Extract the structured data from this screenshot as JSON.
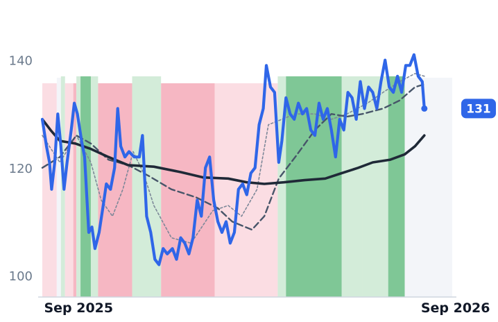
{
  "chart_data": {
    "type": "line",
    "y_ticks": [
      100,
      120,
      140
    ],
    "ylim": [
      96,
      146
    ],
    "x_range": [
      "2025-08-29",
      "2026-09-30"
    ],
    "x_ticks": [
      {
        "date": "2025-09-01",
        "label": "Sep 2025"
      },
      {
        "date": "2026-09-01",
        "label": "Sep 2026"
      }
    ],
    "last_value_label": "131",
    "colors": {
      "price": "#2f66e8",
      "ma_long": "#1f2937",
      "ma_mid": "#475569",
      "ma_short": "#7c8798",
      "up_strong": "#7fc796",
      "up_light": "#d3ecd9",
      "down_strong": "#f6b7c3",
      "down_light": "#fbdde3",
      "neutral": "#f3f5f9"
    },
    "regimes": [
      {
        "start": "2025-08-29",
        "end": "2025-09-12",
        "kind": "down_light"
      },
      {
        "start": "2025-09-12",
        "end": "2025-09-16",
        "kind": "neutral"
      },
      {
        "start": "2025-09-16",
        "end": "2025-09-20",
        "kind": "up_light"
      },
      {
        "start": "2025-09-20",
        "end": "2025-09-28",
        "kind": "down_light"
      },
      {
        "start": "2025-09-28",
        "end": "2025-10-01",
        "kind": "down_strong"
      },
      {
        "start": "2025-10-01",
        "end": "2025-10-05",
        "kind": "up_light"
      },
      {
        "start": "2025-10-05",
        "end": "2025-10-15",
        "kind": "up_strong"
      },
      {
        "start": "2025-10-15",
        "end": "2025-10-22",
        "kind": "up_light"
      },
      {
        "start": "2025-10-22",
        "end": "2025-11-24",
        "kind": "down_strong"
      },
      {
        "start": "2025-11-24",
        "end": "2025-12-22",
        "kind": "up_light"
      },
      {
        "start": "2025-12-22",
        "end": "2026-02-12",
        "kind": "down_strong"
      },
      {
        "start": "2026-02-12",
        "end": "2026-04-14",
        "kind": "down_light"
      },
      {
        "start": "2026-04-14",
        "end": "2026-04-22",
        "kind": "up_light"
      },
      {
        "start": "2026-04-22",
        "end": "2026-06-15",
        "kind": "up_strong"
      },
      {
        "start": "2026-06-15",
        "end": "2026-07-05",
        "kind": "up_light"
      },
      {
        "start": "2026-07-05",
        "end": "2026-07-30",
        "kind": "up_light"
      },
      {
        "start": "2026-07-30",
        "end": "2026-08-15",
        "kind": "up_strong"
      },
      {
        "start": "2026-08-15",
        "end": "2026-09-30",
        "kind": "neutral"
      }
    ],
    "series": [
      {
        "key": "price",
        "points": [
          [
            "2025-08-29",
            129
          ],
          [
            "2025-09-02",
            124
          ],
          [
            "2025-09-05",
            121
          ],
          [
            "2025-09-07",
            116
          ],
          [
            "2025-09-10",
            121
          ],
          [
            "2025-09-13",
            130
          ],
          [
            "2025-09-16",
            124
          ],
          [
            "2025-09-19",
            116
          ],
          [
            "2025-09-22",
            121
          ],
          [
            "2025-09-26",
            127
          ],
          [
            "2025-09-29",
            132
          ],
          [
            "2025-10-02",
            130
          ],
          [
            "2025-10-06",
            125
          ],
          [
            "2025-10-09",
            122
          ],
          [
            "2025-10-13",
            108
          ],
          [
            "2025-10-16",
            109
          ],
          [
            "2025-10-19",
            105
          ],
          [
            "2025-10-23",
            108
          ],
          [
            "2025-10-27",
            113
          ],
          [
            "2025-10-30",
            117
          ],
          [
            "2025-11-03",
            116
          ],
          [
            "2025-11-07",
            120
          ],
          [
            "2025-11-10",
            131
          ],
          [
            "2025-11-13",
            124
          ],
          [
            "2025-11-17",
            122
          ],
          [
            "2025-11-21",
            123
          ],
          [
            "2025-11-26",
            122
          ],
          [
            "2025-12-01",
            122
          ],
          [
            "2025-12-04",
            126
          ],
          [
            "2025-12-08",
            111
          ],
          [
            "2025-12-12",
            108
          ],
          [
            "2025-12-16",
            103
          ],
          [
            "2025-12-20",
            102
          ],
          [
            "2025-12-24",
            105
          ],
          [
            "2025-12-28",
            104
          ],
          [
            "2026-01-02",
            105
          ],
          [
            "2026-01-06",
            103
          ],
          [
            "2026-01-10",
            107
          ],
          [
            "2026-01-14",
            106
          ],
          [
            "2026-01-18",
            104
          ],
          [
            "2026-01-22",
            107
          ],
          [
            "2026-01-26",
            114
          ],
          [
            "2026-01-30",
            111
          ],
          [
            "2026-02-03",
            120
          ],
          [
            "2026-02-07",
            122
          ],
          [
            "2026-02-11",
            114
          ],
          [
            "2026-02-15",
            110
          ],
          [
            "2026-02-19",
            108
          ],
          [
            "2026-02-23",
            110
          ],
          [
            "2026-02-27",
            106
          ],
          [
            "2026-03-03",
            108
          ],
          [
            "2026-03-07",
            116
          ],
          [
            "2026-03-11",
            117
          ],
          [
            "2026-03-15",
            115
          ],
          [
            "2026-03-19",
            119
          ],
          [
            "2026-03-23",
            120
          ],
          [
            "2026-03-27",
            128
          ],
          [
            "2026-03-31",
            131
          ],
          [
            "2026-04-03",
            139
          ],
          [
            "2026-04-07",
            135
          ],
          [
            "2026-04-11",
            134
          ],
          [
            "2026-04-15",
            121
          ],
          [
            "2026-04-18",
            125
          ],
          [
            "2026-04-22",
            133
          ],
          [
            "2026-04-26",
            130
          ],
          [
            "2026-04-30",
            129
          ],
          [
            "2026-05-04",
            132
          ],
          [
            "2026-05-08",
            130
          ],
          [
            "2026-05-12",
            131
          ],
          [
            "2026-05-16",
            127
          ],
          [
            "2026-05-20",
            126
          ],
          [
            "2026-05-24",
            132
          ],
          [
            "2026-05-28",
            129
          ],
          [
            "2026-06-01",
            131
          ],
          [
            "2026-06-05",
            127
          ],
          [
            "2026-06-09",
            122
          ],
          [
            "2026-06-13",
            129
          ],
          [
            "2026-06-17",
            127
          ],
          [
            "2026-06-21",
            134
          ],
          [
            "2026-06-25",
            133
          ],
          [
            "2026-06-29",
            129
          ],
          [
            "2026-07-03",
            136
          ],
          [
            "2026-07-07",
            131
          ],
          [
            "2026-07-11",
            135
          ],
          [
            "2026-07-15",
            134
          ],
          [
            "2026-07-19",
            131
          ],
          [
            "2026-07-23",
            136
          ],
          [
            "2026-07-27",
            140
          ],
          [
            "2026-07-31",
            135
          ],
          [
            "2026-08-04",
            134
          ],
          [
            "2026-08-08",
            137
          ],
          [
            "2026-08-12",
            134
          ],
          [
            "2026-08-16",
            139
          ],
          [
            "2026-08-20",
            139
          ],
          [
            "2026-08-24",
            141
          ],
          [
            "2026-08-28",
            137
          ],
          [
            "2026-09-01",
            136
          ],
          [
            "2026-09-03",
            131
          ]
        ]
      },
      {
        "key": "ma_long",
        "points": [
          [
            "2025-08-29",
            129
          ],
          [
            "2025-09-06",
            127
          ],
          [
            "2025-09-15",
            125
          ],
          [
            "2025-09-30",
            124.5
          ],
          [
            "2025-10-15",
            123.5
          ],
          [
            "2025-11-01",
            122
          ],
          [
            "2025-11-20",
            120.5
          ],
          [
            "2025-12-15",
            120.2
          ],
          [
            "2026-01-10",
            119.2
          ],
          [
            "2026-02-01",
            118.2
          ],
          [
            "2026-02-25",
            118
          ],
          [
            "2026-03-15",
            117.3
          ],
          [
            "2026-04-01",
            117
          ],
          [
            "2026-04-20",
            117.3
          ],
          [
            "2026-05-10",
            117.7
          ],
          [
            "2026-05-30",
            118
          ],
          [
            "2026-06-15",
            119
          ],
          [
            "2026-07-01",
            120
          ],
          [
            "2026-07-15",
            121
          ],
          [
            "2026-08-01",
            121.5
          ],
          [
            "2026-08-15",
            122.5
          ],
          [
            "2026-08-25",
            124
          ],
          [
            "2026-09-03",
            126
          ]
        ]
      },
      {
        "key": "ma_mid",
        "points": [
          [
            "2025-08-29",
            120
          ],
          [
            "2025-09-15",
            122
          ],
          [
            "2025-10-01",
            126
          ],
          [
            "2025-10-15",
            124.5
          ],
          [
            "2025-11-01",
            121.5
          ],
          [
            "2025-11-20",
            120.5
          ],
          [
            "2025-12-10",
            118.5
          ],
          [
            "2026-01-01",
            116
          ],
          [
            "2026-01-25",
            114.5
          ],
          [
            "2026-02-15",
            112.5
          ],
          [
            "2026-03-01",
            110
          ],
          [
            "2026-03-20",
            108.5
          ],
          [
            "2026-04-01",
            111
          ],
          [
            "2026-04-15",
            118
          ],
          [
            "2026-05-01",
            122
          ],
          [
            "2026-05-20",
            127
          ],
          [
            "2026-06-05",
            130
          ],
          [
            "2026-06-20",
            129.5
          ],
          [
            "2026-07-05",
            130
          ],
          [
            "2026-07-25",
            131
          ],
          [
            "2026-08-10",
            132.5
          ],
          [
            "2026-08-25",
            135
          ],
          [
            "2026-09-03",
            135.5
          ]
        ]
      },
      {
        "key": "ma_short",
        "points": [
          [
            "2025-08-29",
            126
          ],
          [
            "2025-09-15",
            121
          ],
          [
            "2025-10-01",
            126
          ],
          [
            "2025-10-15",
            121
          ],
          [
            "2025-10-25",
            114
          ],
          [
            "2025-11-05",
            111
          ],
          [
            "2025-11-15",
            116
          ],
          [
            "2025-11-25",
            123
          ],
          [
            "2025-12-05",
            119
          ],
          [
            "2025-12-15",
            113
          ],
          [
            "2026-01-01",
            107
          ],
          [
            "2026-01-20",
            106
          ],
          [
            "2026-02-10",
            112
          ],
          [
            "2026-02-25",
            113
          ],
          [
            "2026-03-10",
            111
          ],
          [
            "2026-03-25",
            116
          ],
          [
            "2026-04-05",
            128
          ],
          [
            "2026-04-18",
            129
          ],
          [
            "2026-05-01",
            130
          ],
          [
            "2026-05-20",
            130
          ],
          [
            "2026-06-05",
            129
          ],
          [
            "2026-06-20",
            130
          ],
          [
            "2026-07-10",
            132
          ],
          [
            "2026-07-25",
            134
          ],
          [
            "2026-08-10",
            136
          ],
          [
            "2026-08-25",
            137.5
          ],
          [
            "2026-09-03",
            137
          ]
        ]
      }
    ]
  }
}
